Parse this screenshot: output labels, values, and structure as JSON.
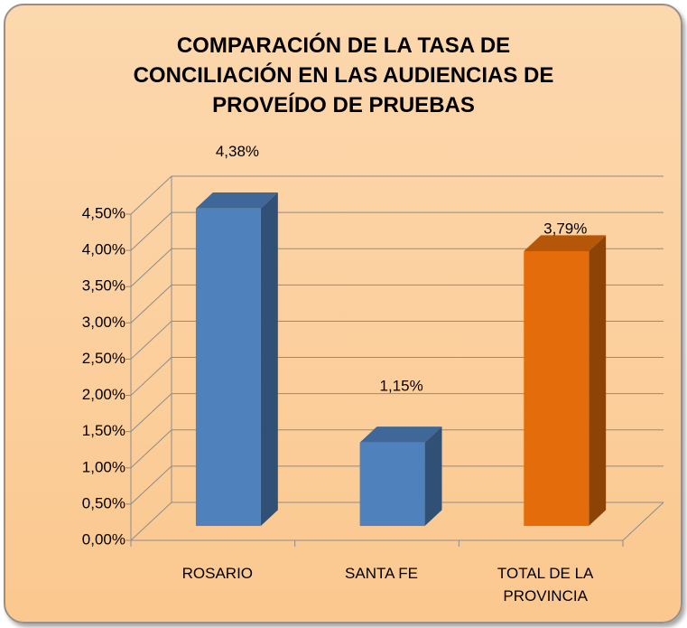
{
  "chart_data": {
    "type": "bar3d",
    "title": [
      "COMPARACIÓN DE LA TASA DE",
      "CONCILIACIÓN EN LAS AUDIENCIAS DE",
      "PROVEÍDO DE PRUEBAS"
    ],
    "categories": [
      "ROSARIO",
      "SANTA FE",
      "TOTAL DE LA PROVINCIA"
    ],
    "values": [
      4.38,
      1.15,
      3.79
    ],
    "value_labels": [
      "4,38%",
      "1,15%",
      "3,79%"
    ],
    "colors": [
      "#4f81bd",
      "#4f81bd",
      "#e46c0a"
    ],
    "ylim": [
      0,
      4.5
    ],
    "yticks": [
      {
        "value": 0,
        "label": "0,00%"
      },
      {
        "value": 0.5,
        "label": "0,50%"
      },
      {
        "value": 1,
        "label": "1,00%"
      },
      {
        "value": 1.5,
        "label": "1,50%"
      },
      {
        "value": 2,
        "label": "2,00%"
      },
      {
        "value": 2.5,
        "label": "2,50%"
      },
      {
        "value": 3,
        "label": "3,00%"
      },
      {
        "value": 3.5,
        "label": "3,50%"
      },
      {
        "value": 4,
        "label": "4,00%"
      },
      {
        "value": 4.5,
        "label": "4,50%"
      }
    ],
    "grid": true
  }
}
